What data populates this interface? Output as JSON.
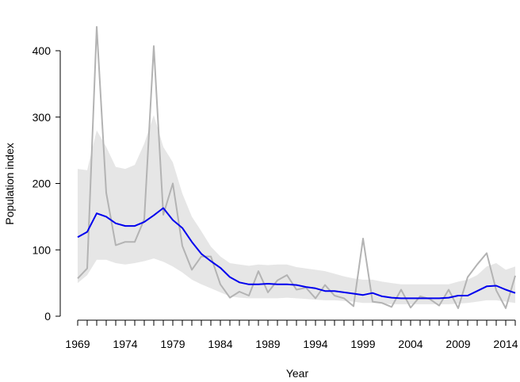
{
  "chart_data": {
    "type": "line",
    "title": "",
    "xlabel": "Year",
    "ylabel": "Population index",
    "xlim": [
      1969,
      2015
    ],
    "ylim": [
      0,
      420
    ],
    "grid": false,
    "legend": "none",
    "x_tick_labels": [
      1969,
      1974,
      1979,
      1984,
      1989,
      1994,
      1999,
      2004,
      2009,
      2014
    ],
    "y_tick_labels": [
      0,
      100,
      200,
      300,
      400
    ],
    "x": [
      1969,
      1970,
      1971,
      1972,
      1973,
      1974,
      1975,
      1976,
      1977,
      1978,
      1979,
      1980,
      1981,
      1982,
      1983,
      1984,
      1985,
      1986,
      1987,
      1988,
      1989,
      1990,
      1991,
      1992,
      1993,
      1994,
      1995,
      1996,
      1997,
      1998,
      1999,
      2000,
      2001,
      2002,
      2003,
      2004,
      2005,
      2006,
      2007,
      2008,
      2009,
      2010,
      2011,
      2012,
      2013,
      2014,
      2015
    ],
    "series": [
      {
        "color": "#b3b3b3",
        "values": [
          57,
          72,
          436,
          186,
          107,
          112,
          112,
          146,
          407,
          153,
          200,
          106,
          70,
          90,
          90,
          48,
          28,
          37,
          31,
          68,
          36,
          54,
          62,
          40,
          43,
          27,
          47,
          31,
          27,
          15,
          117,
          22,
          20,
          14,
          40,
          13,
          30,
          26,
          16,
          40,
          12,
          59,
          78,
          95,
          39,
          12,
          61
        ]
      },
      {
        "color": "#0000ee",
        "values": [
          119,
          127,
          155,
          150,
          140,
          136,
          136,
          142,
          152,
          163,
          145,
          133,
          112,
          94,
          83,
          73,
          59,
          51,
          48,
          48,
          49,
          48,
          48,
          47,
          44,
          42,
          38,
          38,
          36,
          34,
          32,
          35,
          30,
          28,
          27,
          27,
          27,
          27,
          27,
          28,
          31,
          31,
          38,
          45,
          46,
          40,
          35
        ]
      }
    ],
    "band": {
      "color": "#e6e6e6",
      "lower": [
        50,
        62,
        85,
        85,
        80,
        78,
        80,
        83,
        87,
        82,
        75,
        66,
        55,
        48,
        42,
        36,
        30,
        28,
        27,
        27,
        27,
        27,
        28,
        27,
        26,
        25,
        24,
        24,
        23,
        22,
        20,
        20,
        19,
        18,
        18,
        18,
        18,
        18,
        18,
        18,
        19,
        20,
        22,
        24,
        24,
        22,
        20
      ],
      "upper": [
        222,
        220,
        280,
        255,
        225,
        222,
        228,
        260,
        303,
        255,
        232,
        185,
        150,
        128,
        105,
        90,
        80,
        78,
        76,
        78,
        77,
        78,
        78,
        74,
        72,
        70,
        68,
        64,
        60,
        57,
        55,
        55,
        52,
        50,
        48,
        48,
        48,
        48,
        48,
        48,
        52,
        55,
        62,
        75,
        80,
        70,
        75
      ]
    }
  }
}
